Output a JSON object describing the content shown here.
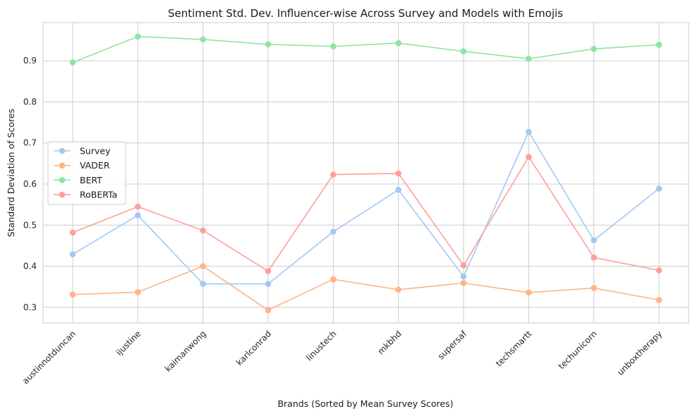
{
  "chart_data": {
    "type": "line",
    "title": "Sentiment Std. Dev. Influencer-wise Across Survey and Models with Emojis",
    "xlabel": "Brands (Sorted by Mean Survey Scores)",
    "ylabel": "Standard Deviation of Scores",
    "ylim": [
      0.262,
      0.993
    ],
    "yticks": [
      0.3,
      0.4,
      0.5,
      0.6,
      0.7,
      0.8,
      0.9
    ],
    "grid": true,
    "legend_position": "center-left",
    "categories": [
      "austinnotduncan",
      "ijustine",
      "kaimanwong",
      "karlconrad",
      "linustech",
      "mkbhd",
      "supersaf",
      "techsmartt",
      "techunicorn",
      "unboxtherapy"
    ],
    "series": [
      {
        "name": "Survey",
        "color": "#a1c9f4",
        "values": [
          0.429,
          0.524,
          0.357,
          0.357,
          0.484,
          0.586,
          0.375,
          0.727,
          0.463,
          0.589
        ]
      },
      {
        "name": "VADER",
        "color": "#ffb482",
        "values": [
          0.331,
          0.337,
          0.4,
          0.293,
          0.368,
          0.343,
          0.359,
          0.336,
          0.347,
          0.318
        ]
      },
      {
        "name": "BERT",
        "color": "#8de5a1",
        "values": [
          0.896,
          0.959,
          0.952,
          0.94,
          0.935,
          0.943,
          0.923,
          0.905,
          0.929,
          0.939
        ]
      },
      {
        "name": "RoBERTa",
        "color": "#ff9f9b",
        "values": [
          0.482,
          0.545,
          0.487,
          0.388,
          0.623,
          0.626,
          0.402,
          0.666,
          0.421,
          0.39
        ]
      }
    ]
  }
}
